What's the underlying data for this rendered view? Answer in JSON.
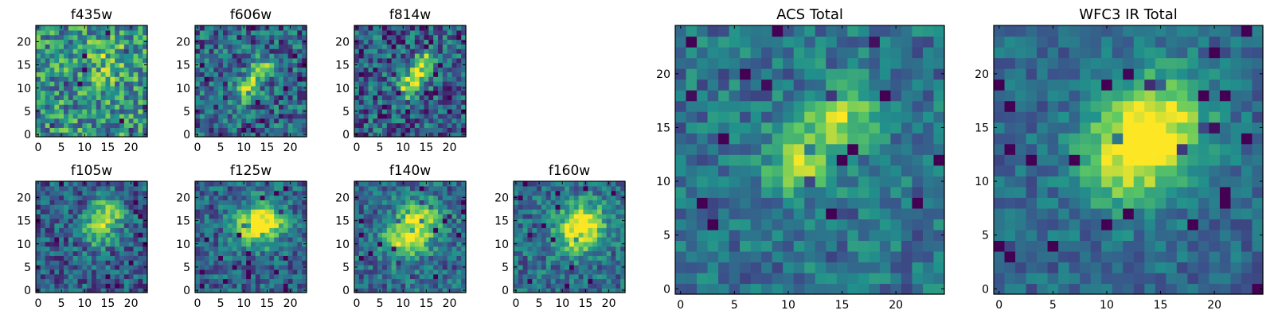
{
  "colormap": [
    "#440154",
    "#3b528b",
    "#21918c",
    "#5ec962",
    "#fde725"
  ],
  "chart_data": [
    {
      "type": "heatmap",
      "title": "f435w",
      "grid_size": [
        24,
        24
      ],
      "x_ticks": [
        "0",
        "5",
        "10",
        "15",
        "20"
      ],
      "y_ticks": [
        "0",
        "5",
        "10",
        "15",
        "20"
      ],
      "blob_centers": [
        [
          15,
          16
        ]
      ],
      "blob_sigma": 3.5,
      "blob_strength": 0.2,
      "noise": 0.62,
      "floor": 0.52,
      "seed": 435
    },
    {
      "type": "heatmap",
      "title": "f606w",
      "grid_size": [
        24,
        24
      ],
      "x_ticks": [
        "0",
        "5",
        "10",
        "15",
        "20"
      ],
      "y_ticks": [
        "0",
        "5",
        "10",
        "15",
        "20"
      ],
      "blob_centers": [
        [
          10,
          9
        ],
        [
          12,
          12
        ],
        [
          14,
          15
        ]
      ],
      "blob_sigma": 1.8,
      "blob_strength": 0.35,
      "noise": 0.55,
      "floor": 0.32,
      "seed": 606
    },
    {
      "type": "heatmap",
      "title": "f814w",
      "grid_size": [
        24,
        24
      ],
      "x_ticks": [
        "0",
        "5",
        "10",
        "15",
        "20"
      ],
      "y_ticks": [
        "0",
        "5",
        "10",
        "15",
        "20"
      ],
      "blob_centers": [
        [
          11,
          10
        ],
        [
          13,
          13
        ],
        [
          15,
          16
        ]
      ],
      "blob_sigma": 1.8,
      "blob_strength": 0.45,
      "noise": 0.55,
      "floor": 0.3,
      "seed": 814
    },
    {
      "type": "heatmap",
      "title": "f105w",
      "grid_size": [
        24,
        24
      ],
      "x_ticks": [
        "0",
        "5",
        "10",
        "15",
        "20"
      ],
      "y_ticks": [
        "0",
        "5",
        "10",
        "15",
        "20"
      ],
      "blob_centers": [
        [
          13,
          13
        ],
        [
          15,
          17
        ]
      ],
      "blob_sigma": 2.5,
      "blob_strength": 0.45,
      "noise": 0.45,
      "floor": 0.3,
      "seed": 105
    },
    {
      "type": "heatmap",
      "title": "f125w",
      "grid_size": [
        24,
        24
      ],
      "x_ticks": [
        "0",
        "5",
        "10",
        "15",
        "20"
      ],
      "y_ticks": [
        "0",
        "5",
        "10",
        "15",
        "20"
      ],
      "blob_centers": [
        [
          12,
          14
        ],
        [
          15,
          15
        ]
      ],
      "blob_sigma": 3.0,
      "blob_strength": 0.5,
      "noise": 0.42,
      "floor": 0.32,
      "seed": 125
    },
    {
      "type": "heatmap",
      "title": "f140w",
      "grid_size": [
        24,
        24
      ],
      "x_ticks": [
        "0",
        "5",
        "10",
        "15",
        "20"
      ],
      "y_ticks": [
        "0",
        "5",
        "10",
        "15",
        "20"
      ],
      "blob_centers": [
        [
          10,
          11
        ],
        [
          14,
          15
        ]
      ],
      "blob_sigma": 3.2,
      "blob_strength": 0.5,
      "noise": 0.42,
      "floor": 0.34,
      "seed": 140
    },
    {
      "type": "heatmap",
      "title": "f160w",
      "grid_size": [
        24,
        24
      ],
      "x_ticks": [
        "0",
        "5",
        "10",
        "15",
        "20"
      ],
      "y_ticks": [
        "0",
        "5",
        "10",
        "15",
        "20"
      ],
      "blob_centers": [
        [
          13,
          12
        ],
        [
          15,
          15
        ]
      ],
      "blob_sigma": 3.2,
      "blob_strength": 0.45,
      "noise": 0.4,
      "floor": 0.36,
      "seed": 160
    },
    {
      "type": "heatmap",
      "title": "ACS Total",
      "grid_size": [
        25,
        25
      ],
      "x_ticks": [
        "0",
        "5",
        "10",
        "15",
        "20"
      ],
      "y_ticks": [
        "0",
        "5",
        "10",
        "15",
        "20"
      ],
      "blob_centers": [
        [
          11,
          12
        ],
        [
          15,
          16
        ]
      ],
      "blob_sigma": 2.2,
      "blob_strength": 0.45,
      "noise": 0.36,
      "floor": 0.38,
      "seed": 1001
    },
    {
      "type": "heatmap",
      "title": "WFC3 IR Total",
      "grid_size": [
        25,
        25
      ],
      "x_ticks": [
        "0",
        "5",
        "10",
        "15",
        "20"
      ],
      "y_ticks": [
        "0",
        "5",
        "10",
        "15",
        "20"
      ],
      "blob_centers": [
        [
          12,
          12
        ],
        [
          15,
          16
        ]
      ],
      "blob_sigma": 3.2,
      "blob_strength": 0.55,
      "noise": 0.28,
      "floor": 0.34,
      "seed": 2002
    }
  ]
}
